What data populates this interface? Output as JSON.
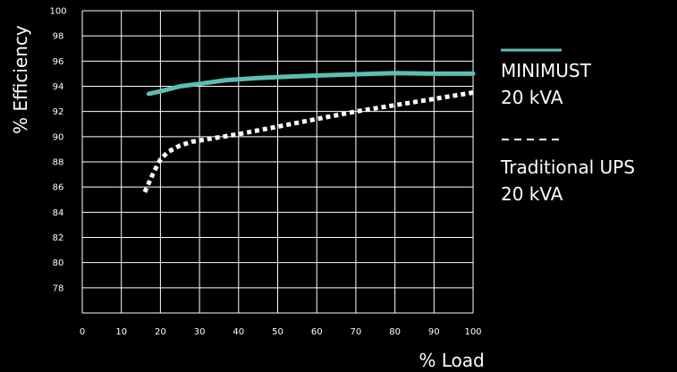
{
  "chart_data": {
    "type": "line",
    "title": "",
    "xlabel": "% Load",
    "ylabel": "% Efficiency",
    "xlim": [
      0,
      100
    ],
    "ylim": [
      76,
      100
    ],
    "xticks": [
      "0",
      "10",
      "20",
      "30",
      "40",
      "50",
      "60",
      "70",
      "80",
      "90",
      "100"
    ],
    "yticks": [
      "78",
      "80",
      "82",
      "84",
      "86",
      "88",
      "90",
      "92",
      "94",
      "96",
      "98",
      "100"
    ],
    "grid": true,
    "legend_position": "right",
    "series": [
      {
        "name": "MINIMUST 20 kVA",
        "legend_lines": [
          "MINIMUST",
          "20 kVA"
        ],
        "style": "solid",
        "color": "#5bbfb6",
        "x": [
          17,
          20,
          25,
          30,
          37,
          45,
          55,
          65,
          75,
          80,
          90,
          100
        ],
        "y": [
          93.4,
          93.6,
          94.0,
          94.2,
          94.5,
          94.65,
          94.8,
          94.9,
          95.0,
          95.05,
          95.0,
          95.0
        ]
      },
      {
        "name": "Traditional UPS 20 kVA",
        "legend_lines": [
          "Traditional UPS",
          "20 kVA"
        ],
        "style": "dashed",
        "color": "#ffffff",
        "x": [
          16,
          17,
          18,
          19,
          20,
          22,
          25,
          28,
          32,
          40,
          50,
          60,
          70,
          80,
          90,
          100
        ],
        "y": [
          85.6,
          86.3,
          87.0,
          87.6,
          88.2,
          88.8,
          89.3,
          89.6,
          89.8,
          90.2,
          90.8,
          91.4,
          92.0,
          92.5,
          93.0,
          93.5
        ]
      }
    ]
  }
}
